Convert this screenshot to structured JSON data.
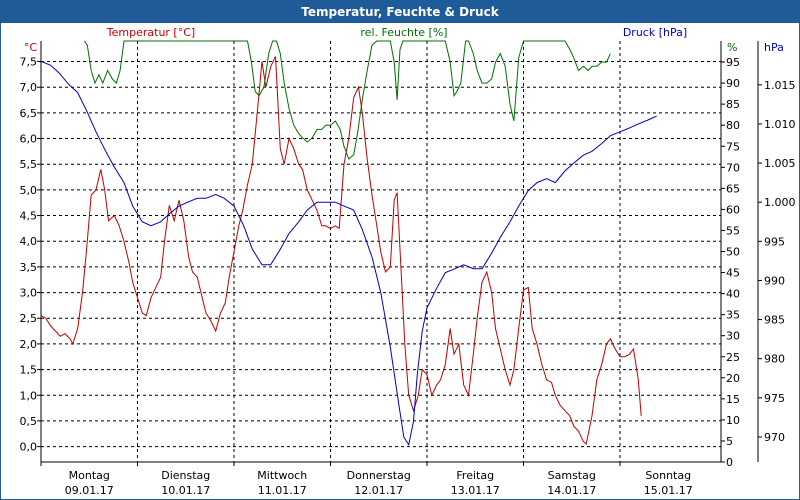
{
  "window": {
    "title": "Temperatur, Feuchte & Druck"
  },
  "chart_data": {
    "type": "line",
    "title": "Temperatur, Feuchte & Druck",
    "x_categories": [
      {
        "day": "Montag",
        "date": "09.01.17"
      },
      {
        "day": "Dienstag",
        "date": "10.01.17"
      },
      {
        "day": "Mittwoch",
        "date": "11.01.17"
      },
      {
        "day": "Donnerstag",
        "date": "12.01.17"
      },
      {
        "day": "Freitag",
        "date": "13.01.17"
      },
      {
        "day": "Samstag",
        "date": "14.01.17"
      },
      {
        "day": "Sonntag",
        "date": "15.01.17"
      }
    ],
    "x_range_days": [
      0,
      7
    ],
    "grid": true,
    "axes": {
      "temperature": {
        "label": "Temperatur [°C]",
        "unit": "°C",
        "range": [
          -0.3,
          7.9
        ],
        "ticks": [
          "0,0",
          "0,5",
          "1,0",
          "1,5",
          "2,0",
          "2,5",
          "3,0",
          "3,5",
          "4,0",
          "4,5",
          "5,0",
          "5,5",
          "6,0",
          "6,5",
          "7,0",
          "7,5"
        ],
        "color": "#c00000"
      },
      "humidity": {
        "label": "rel. Feuchte [%]",
        "unit": "%",
        "range": [
          0,
          100
        ],
        "ticks": [
          "0",
          "5",
          "10",
          "15",
          "20",
          "25",
          "30",
          "35",
          "40",
          "45",
          "50",
          "55",
          "60",
          "65",
          "70",
          "75",
          "80",
          "85",
          "90",
          "95"
        ],
        "color": "#007000"
      },
      "pressure": {
        "label": "Druck [hPa]",
        "unit": "hPa",
        "range": [
          966.8,
          1020.6
        ],
        "ticks": [
          "970",
          "975",
          "980",
          "985",
          "990",
          "995",
          "1.000",
          "1.005",
          "1.010",
          "1.015"
        ],
        "color": "#0000c0"
      }
    },
    "series": [
      {
        "name": "Temperatur [°C]",
        "axis": "temperature",
        "color": "#c00000",
        "points": [
          [
            0.0,
            2.55
          ],
          [
            0.05,
            2.5
          ],
          [
            0.1,
            2.35
          ],
          [
            0.15,
            2.25
          ],
          [
            0.2,
            2.15
          ],
          [
            0.25,
            2.2
          ],
          [
            0.3,
            2.1
          ],
          [
            0.33,
            2.0
          ],
          [
            0.38,
            2.3
          ],
          [
            0.43,
            3.0
          ],
          [
            0.47,
            3.8
          ],
          [
            0.52,
            4.9
          ],
          [
            0.57,
            5.0
          ],
          [
            0.62,
            5.4
          ],
          [
            0.66,
            5.0
          ],
          [
            0.7,
            4.4
          ],
          [
            0.76,
            4.5
          ],
          [
            0.81,
            4.3
          ],
          [
            0.86,
            4.0
          ],
          [
            0.91,
            3.6
          ],
          [
            0.95,
            3.2
          ],
          [
            1.0,
            2.9
          ],
          [
            1.05,
            2.6
          ],
          [
            1.09,
            2.55
          ],
          [
            1.14,
            2.9
          ],
          [
            1.19,
            3.1
          ],
          [
            1.24,
            3.3
          ],
          [
            1.28,
            4.0
          ],
          [
            1.33,
            4.7
          ],
          [
            1.38,
            4.4
          ],
          [
            1.43,
            4.8
          ],
          [
            1.48,
            4.4
          ],
          [
            1.53,
            3.7
          ],
          [
            1.57,
            3.4
          ],
          [
            1.62,
            3.3
          ],
          [
            1.67,
            2.9
          ],
          [
            1.71,
            2.6
          ],
          [
            1.76,
            2.45
          ],
          [
            1.81,
            2.25
          ],
          [
            1.86,
            2.6
          ],
          [
            1.91,
            2.8
          ],
          [
            1.95,
            3.3
          ],
          [
            2.0,
            3.8
          ],
          [
            2.05,
            4.3
          ],
          [
            2.09,
            4.6
          ],
          [
            2.14,
            5.1
          ],
          [
            2.19,
            5.5
          ],
          [
            2.24,
            6.5
          ],
          [
            2.29,
            7.5
          ],
          [
            2.33,
            7.0
          ],
          [
            2.38,
            7.4
          ],
          [
            2.43,
            7.6
          ],
          [
            2.48,
            5.8
          ],
          [
            2.52,
            5.5
          ],
          [
            2.57,
            6.0
          ],
          [
            2.62,
            5.8
          ],
          [
            2.67,
            5.5
          ],
          [
            2.71,
            5.4
          ],
          [
            2.76,
            5.0
          ],
          [
            2.81,
            4.8
          ],
          [
            2.86,
            4.6
          ],
          [
            2.91,
            4.3
          ],
          [
            2.95,
            4.3
          ],
          [
            3.0,
            4.25
          ],
          [
            3.05,
            4.3
          ],
          [
            3.09,
            4.25
          ],
          [
            3.14,
            5.5
          ],
          [
            3.19,
            6.0
          ],
          [
            3.24,
            6.8
          ],
          [
            3.29,
            7.0
          ],
          [
            3.33,
            6.5
          ],
          [
            3.38,
            5.6
          ],
          [
            3.43,
            4.9
          ],
          [
            3.48,
            4.3
          ],
          [
            3.52,
            3.8
          ],
          [
            3.57,
            3.4
          ],
          [
            3.62,
            3.5
          ],
          [
            3.66,
            4.8
          ],
          [
            3.69,
            4.95
          ],
          [
            3.73,
            3.5
          ],
          [
            3.77,
            2.0
          ],
          [
            3.81,
            1.0
          ],
          [
            3.86,
            0.7
          ],
          [
            3.91,
            1.0
          ],
          [
            3.95,
            1.5
          ],
          [
            4.0,
            1.4
          ],
          [
            4.05,
            1.0
          ],
          [
            4.1,
            1.2
          ],
          [
            4.14,
            1.3
          ],
          [
            4.19,
            1.6
          ],
          [
            4.24,
            2.3
          ],
          [
            4.28,
            1.8
          ],
          [
            4.33,
            2.0
          ],
          [
            4.38,
            1.2
          ],
          [
            4.43,
            1.0
          ],
          [
            4.48,
            1.8
          ],
          [
            4.52,
            2.5
          ],
          [
            4.57,
            3.2
          ],
          [
            4.62,
            3.4
          ],
          [
            4.67,
            3.0
          ],
          [
            4.71,
            2.3
          ],
          [
            4.76,
            1.9
          ],
          [
            4.81,
            1.5
          ],
          [
            4.86,
            1.2
          ],
          [
            4.9,
            1.5
          ],
          [
            4.95,
            2.3
          ],
          [
            5.0,
            3.05
          ],
          [
            5.05,
            3.1
          ],
          [
            5.09,
            2.3
          ],
          [
            5.14,
            2.0
          ],
          [
            5.19,
            1.6
          ],
          [
            5.24,
            1.3
          ],
          [
            5.29,
            1.25
          ],
          [
            5.33,
            1.0
          ],
          [
            5.38,
            0.8
          ],
          [
            5.43,
            0.7
          ],
          [
            5.48,
            0.6
          ],
          [
            5.52,
            0.4
          ],
          [
            5.57,
            0.3
          ],
          [
            5.62,
            0.1
          ],
          [
            5.65,
            0.05
          ],
          [
            5.71,
            0.6
          ],
          [
            5.76,
            1.3
          ],
          [
            5.81,
            1.6
          ],
          [
            5.86,
            2.0
          ],
          [
            5.9,
            2.1
          ],
          [
            5.95,
            1.9
          ],
          [
            6.0,
            1.75
          ],
          [
            6.05,
            1.75
          ],
          [
            6.1,
            1.8
          ],
          [
            6.14,
            1.9
          ],
          [
            6.19,
            1.3
          ],
          [
            6.22,
            0.6
          ]
        ]
      },
      {
        "name": "rel. Feuchte [%]",
        "axis": "humidity",
        "color": "#007000",
        "points": [
          [
            0.45,
            100
          ],
          [
            0.48,
            99
          ],
          [
            0.52,
            93
          ],
          [
            0.56,
            90
          ],
          [
            0.6,
            92
          ],
          [
            0.64,
            90
          ],
          [
            0.69,
            93
          ],
          [
            0.74,
            91
          ],
          [
            0.78,
            90
          ],
          [
            0.82,
            93
          ],
          [
            0.86,
            100
          ],
          [
            2.14,
            100
          ],
          [
            2.18,
            95
          ],
          [
            2.22,
            88
          ],
          [
            2.26,
            87
          ],
          [
            2.31,
            89
          ],
          [
            2.36,
            97
          ],
          [
            2.4,
            100
          ],
          [
            2.44,
            100
          ],
          [
            2.48,
            97
          ],
          [
            2.52,
            90
          ],
          [
            2.57,
            84
          ],
          [
            2.62,
            80
          ],
          [
            2.67,
            78
          ],
          [
            2.71,
            77
          ],
          [
            2.76,
            76
          ],
          [
            2.81,
            77
          ],
          [
            2.86,
            79
          ],
          [
            2.91,
            79
          ],
          [
            2.95,
            80
          ],
          [
            3.0,
            80
          ],
          [
            3.05,
            81
          ],
          [
            3.1,
            79
          ],
          [
            3.14,
            75
          ],
          [
            3.19,
            72
          ],
          [
            3.24,
            73
          ],
          [
            3.28,
            78
          ],
          [
            3.33,
            86
          ],
          [
            3.38,
            93
          ],
          [
            3.43,
            99
          ],
          [
            3.48,
            100
          ],
          [
            3.62,
            100
          ],
          [
            3.66,
            95
          ],
          [
            3.69,
            86
          ],
          [
            3.72,
            98
          ],
          [
            3.75,
            100
          ],
          [
            4.19,
            100
          ],
          [
            4.24,
            95
          ],
          [
            4.28,
            87
          ],
          [
            4.31,
            88
          ],
          [
            4.35,
            90
          ],
          [
            4.4,
            100
          ],
          [
            4.43,
            100
          ],
          [
            4.48,
            97
          ],
          [
            4.52,
            93
          ],
          [
            4.57,
            90
          ],
          [
            4.62,
            90
          ],
          [
            4.67,
            91
          ],
          [
            4.71,
            95
          ],
          [
            4.76,
            97
          ],
          [
            4.81,
            94
          ],
          [
            4.86,
            85
          ],
          [
            4.9,
            81
          ],
          [
            4.95,
            96
          ],
          [
            5.0,
            100
          ],
          [
            5.43,
            100
          ],
          [
            5.48,
            98
          ],
          [
            5.52,
            96
          ],
          [
            5.57,
            93
          ],
          [
            5.62,
            94
          ],
          [
            5.67,
            93
          ],
          [
            5.71,
            94
          ],
          [
            5.76,
            94
          ],
          [
            5.81,
            95
          ],
          [
            5.86,
            95
          ],
          [
            5.9,
            97
          ]
        ]
      },
      {
        "name": "Druck [hPa]",
        "axis": "pressure",
        "color": "#0000c0",
        "points": [
          [
            0.0,
            1018.0
          ],
          [
            0.1,
            1017.5
          ],
          [
            0.19,
            1016.5
          ],
          [
            0.29,
            1015.0
          ],
          [
            0.38,
            1014.0
          ],
          [
            0.48,
            1011.5
          ],
          [
            0.57,
            1009.0
          ],
          [
            0.67,
            1006.5
          ],
          [
            0.76,
            1004.5
          ],
          [
            0.86,
            1002.5
          ],
          [
            0.95,
            999.5
          ],
          [
            1.05,
            997.5
          ],
          [
            1.14,
            997.0
          ],
          [
            1.24,
            997.5
          ],
          [
            1.33,
            998.5
          ],
          [
            1.43,
            999.5
          ],
          [
            1.52,
            1000.0
          ],
          [
            1.62,
            1000.5
          ],
          [
            1.71,
            1000.5
          ],
          [
            1.81,
            1001.0
          ],
          [
            1.9,
            1000.5
          ],
          [
            2.0,
            999.5
          ],
          [
            2.1,
            997.0
          ],
          [
            2.19,
            994.0
          ],
          [
            2.29,
            992.0
          ],
          [
            2.38,
            992.0
          ],
          [
            2.48,
            994.0
          ],
          [
            2.57,
            996.0
          ],
          [
            2.67,
            997.5
          ],
          [
            2.76,
            999.0
          ],
          [
            2.86,
            1000.0
          ],
          [
            2.95,
            1000.0
          ],
          [
            3.05,
            1000.0
          ],
          [
            3.14,
            999.5
          ],
          [
            3.24,
            999.0
          ],
          [
            3.33,
            996.5
          ],
          [
            3.43,
            993.0
          ],
          [
            3.52,
            988.5
          ],
          [
            3.62,
            981.5
          ],
          [
            3.71,
            974.0
          ],
          [
            3.76,
            970.0
          ],
          [
            3.81,
            969.0
          ],
          [
            3.86,
            972.0
          ],
          [
            3.9,
            978.0
          ],
          [
            3.95,
            983.5
          ],
          [
            4.0,
            986.5
          ],
          [
            4.1,
            989.0
          ],
          [
            4.19,
            991.0
          ],
          [
            4.29,
            991.5
          ],
          [
            4.38,
            992.0
          ],
          [
            4.48,
            991.5
          ],
          [
            4.57,
            991.5
          ],
          [
            4.67,
            993.5
          ],
          [
            4.76,
            995.5
          ],
          [
            4.86,
            997.5
          ],
          [
            4.95,
            999.5
          ],
          [
            5.05,
            1001.5
          ],
          [
            5.14,
            1002.5
          ],
          [
            5.24,
            1003.0
          ],
          [
            5.33,
            1002.5
          ],
          [
            5.43,
            1004.0
          ],
          [
            5.52,
            1005.0
          ],
          [
            5.62,
            1006.0
          ],
          [
            5.71,
            1006.5
          ],
          [
            5.81,
            1007.5
          ],
          [
            5.9,
            1008.5
          ],
          [
            6.0,
            1009.0
          ],
          [
            6.1,
            1009.5
          ],
          [
            6.19,
            1010.0
          ],
          [
            6.29,
            1010.5
          ],
          [
            6.38,
            1011.0
          ]
        ]
      }
    ]
  }
}
